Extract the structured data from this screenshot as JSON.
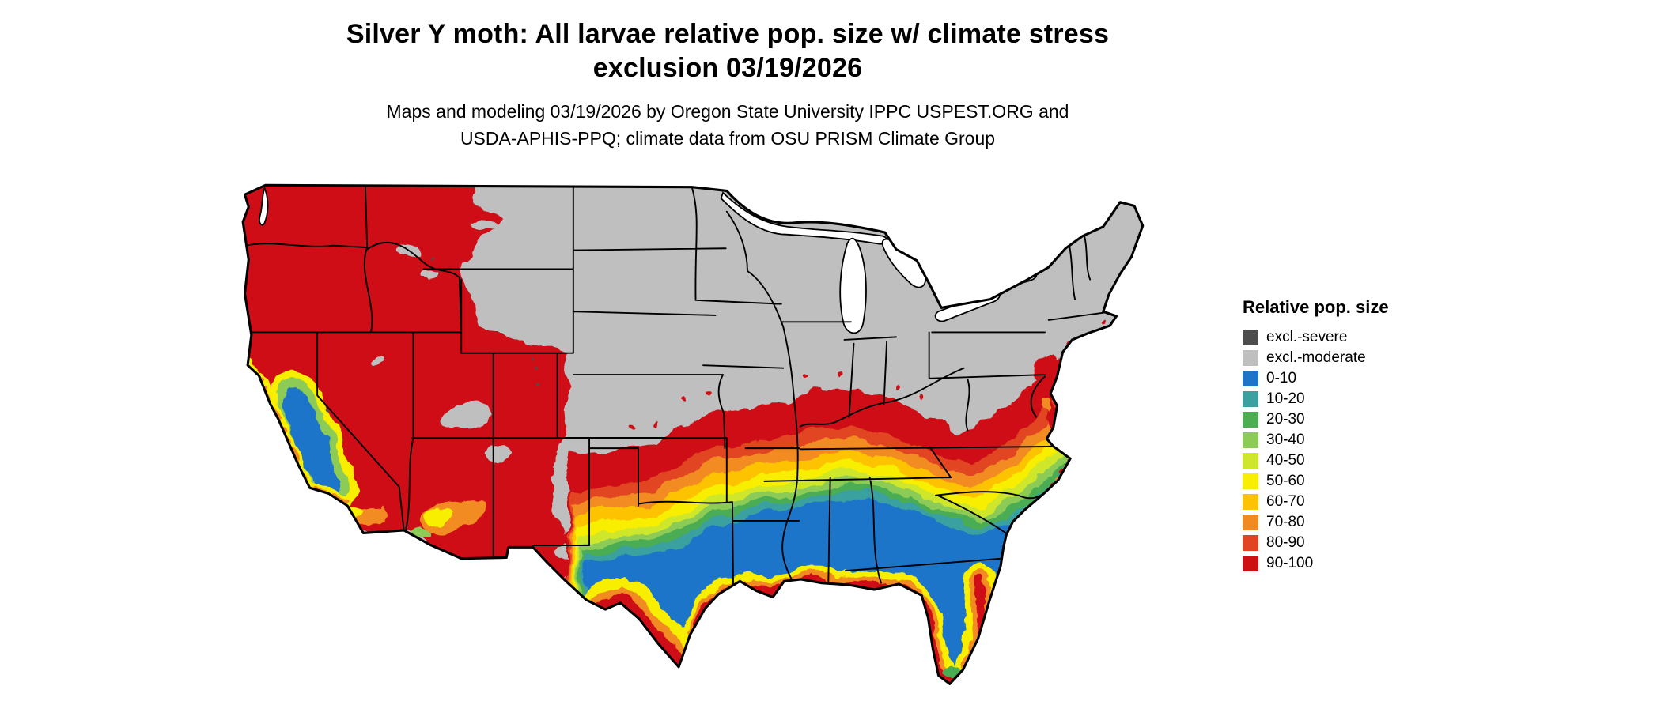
{
  "header": {
    "title_line1": "Silver Y moth: All larvae relative pop. size w/ climate stress",
    "title_line2": "exclusion 03/19/2026",
    "subtitle_line1": "Maps and modeling 03/19/2026 by Oregon State University IPPC USPEST.ORG and",
    "subtitle_line2": "USDA-APHIS-PPQ; climate data from OSU PRISM Climate Group"
  },
  "legend": {
    "title": "Relative pop. size",
    "items": [
      {
        "key": "excl-severe",
        "label": "excl.-severe",
        "color": "#4d4d4d"
      },
      {
        "key": "excl-moderate",
        "label": "excl.-moderate",
        "color": "#bfbfbf"
      },
      {
        "key": "b0",
        "label": "0-10",
        "color": "#1d74c9"
      },
      {
        "key": "b10",
        "label": "10-20",
        "color": "#3aa0a0"
      },
      {
        "key": "b20",
        "label": "20-30",
        "color": "#4cad53"
      },
      {
        "key": "b30",
        "label": "30-40",
        "color": "#8ccb56"
      },
      {
        "key": "b40",
        "label": "40-50",
        "color": "#cfe72b"
      },
      {
        "key": "b50",
        "label": "50-60",
        "color": "#f8ee00"
      },
      {
        "key": "b60",
        "label": "60-70",
        "color": "#fdc300"
      },
      {
        "key": "b70",
        "label": "70-80",
        "color": "#f18b21"
      },
      {
        "key": "b80",
        "label": "80-90",
        "color": "#e14423"
      },
      {
        "key": "b90",
        "label": "90-100",
        "color": "#ce1013"
      }
    ]
  }
}
